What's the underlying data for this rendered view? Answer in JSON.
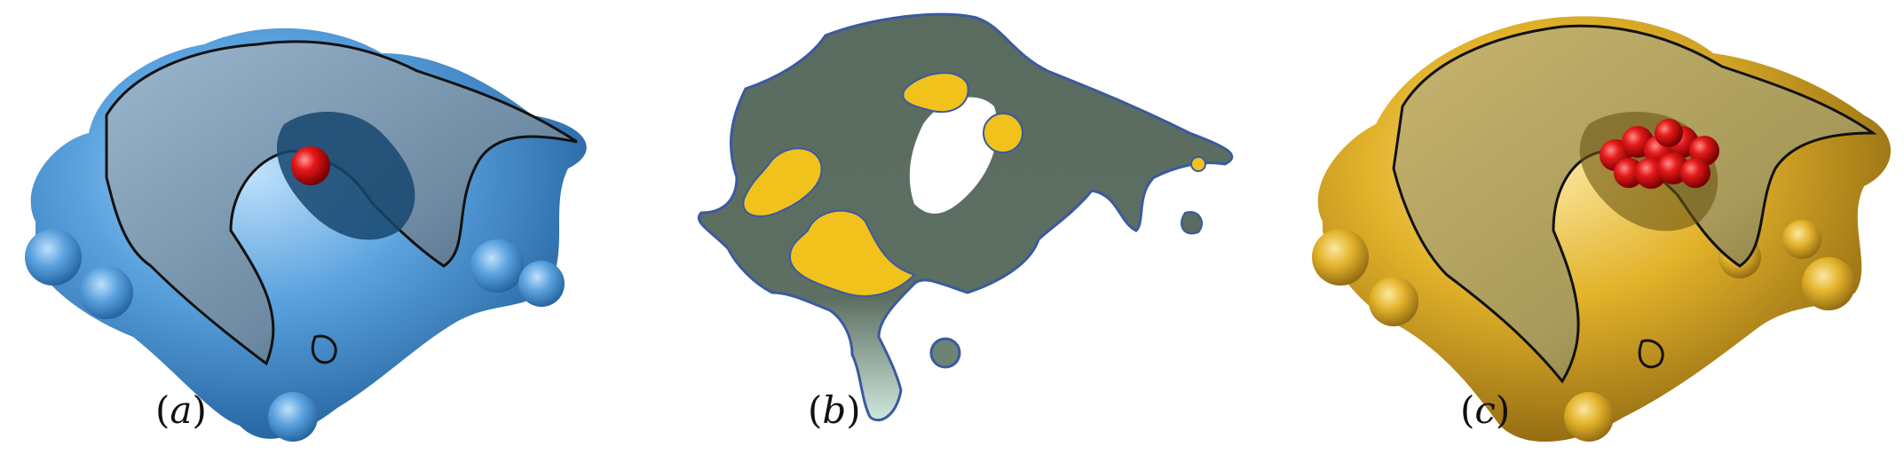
{
  "panels": [
    {
      "id": "a",
      "label": "(a)",
      "open": "(",
      "letter": "a",
      "close": ")",
      "surface_color": "#4f96d6",
      "accent_color": "#e01414"
    },
    {
      "id": "b",
      "label": "(b)",
      "open": "(",
      "letter": "b",
      "close": ")",
      "surface_color": "#5a6a5e",
      "accent_color": "#f2c21c"
    },
    {
      "id": "c",
      "label": "(c)",
      "open": "(",
      "letter": "c",
      "close": ")",
      "surface_color": "#e0b22a",
      "accent_color": "#e01414"
    }
  ]
}
